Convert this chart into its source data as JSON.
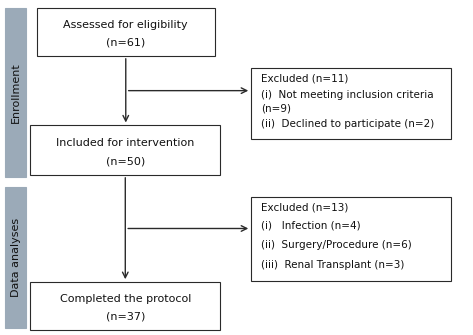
{
  "bg_color": "#ffffff",
  "sidebar_color": "#9baab8",
  "box_edge": "#2a2a2a",
  "arrow_color": "#2a2a2a",
  "text_color": "#111111",
  "enrollment_label": "Enrollment",
  "data_analyses_label": "Data analyses",
  "box1_line1": "Assessed for eligibility",
  "box1_line2": "(n=61)",
  "box2_line1": "Included for intervention",
  "box2_line2": "(n=50)",
  "box3_line1": "Completed the protocol",
  "box3_line2": "(n=37)",
  "excl1_line1": "Excluded (n=11)",
  "excl1_line2": "(i)  Not meeting inclusion criteria",
  "excl1_line3": "(n=9)",
  "excl1_line4": "(ii)  Declined to participate (n=2)",
  "excl2_line1": "Excluded (n=13)",
  "excl2_line2": "(i)   Infection (n=4)",
  "excl2_line3": "(ii)  Surgery/Procedure (n=6)",
  "excl2_line4": "(iii)  Renal Transplant (n=3)",
  "fontsize_main": 8.0,
  "fontsize_excl": 7.5,
  "fontsize_sidebar": 8.0
}
